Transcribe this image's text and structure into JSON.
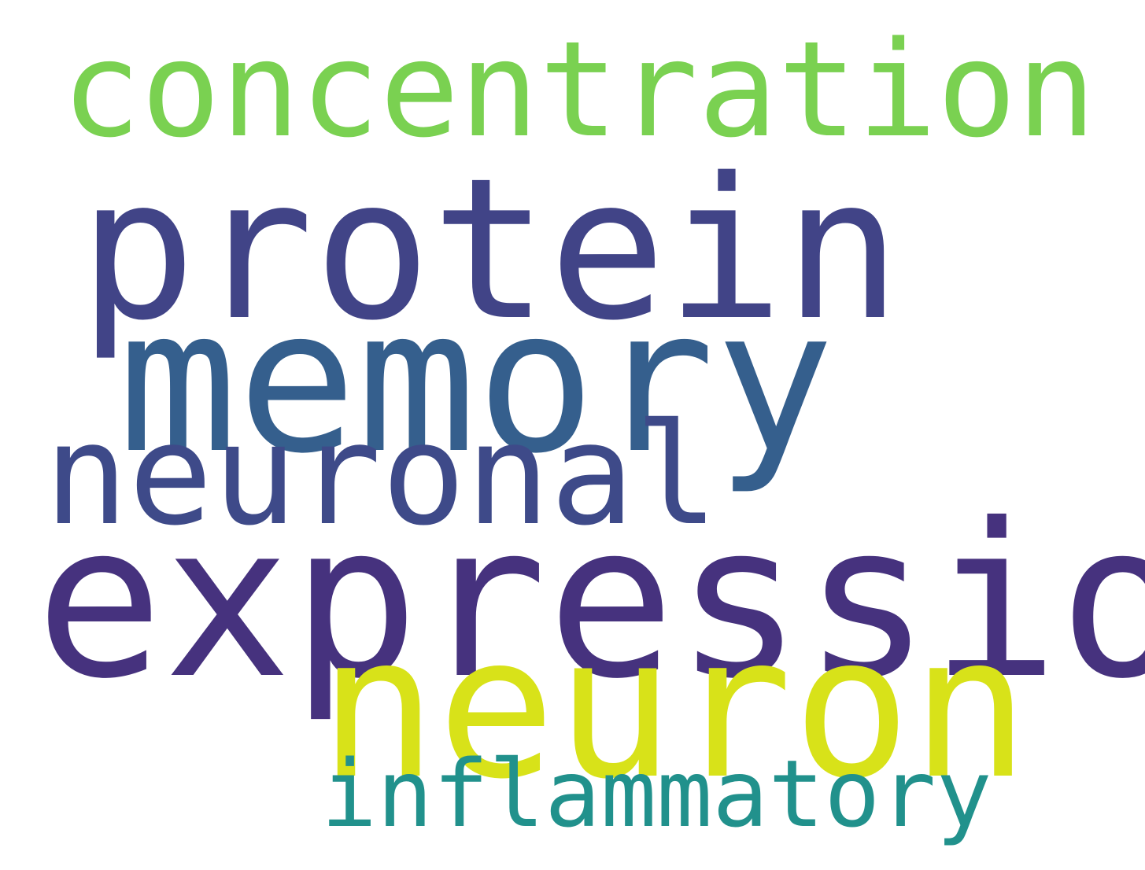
{
  "words": [
    {
      "text": "concentration",
      "color": "#7ad151"
    },
    {
      "text": "protein",
      "color": "#414487"
    },
    {
      "text": "memory",
      "color": "#355f8d"
    },
    {
      "text": "neuronal",
      "color": "#3e4a89"
    },
    {
      "text": "expression",
      "color": "#46327e"
    },
    {
      "text": "neuron",
      "color": "#d8e219"
    },
    {
      "text": "inflammatory",
      "color": "#21918c"
    }
  ]
}
